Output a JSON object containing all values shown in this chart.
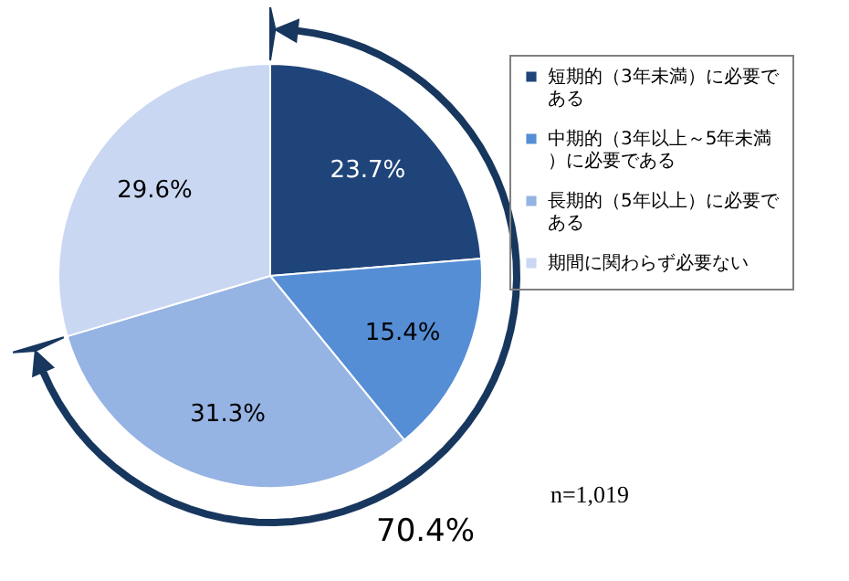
{
  "chart_data": {
    "type": "pie",
    "categories": [
      "短期的（3年未満）に必要である",
      "中期的（3年以上～5年未満）に必要である",
      "長期的（5年以上）に必要である",
      "期間に関わらず必要ない"
    ],
    "values": [
      23.7,
      15.4,
      31.3,
      29.6
    ],
    "value_labels": [
      "23.7%",
      "15.4%",
      "31.3%",
      "29.6%"
    ],
    "colors": [
      "#1f4479",
      "#558ed5",
      "#95b3e3",
      "#c9d7f2"
    ],
    "legend": "right",
    "annotations": [
      "70.4%",
      "n=1,019"
    ]
  }
}
